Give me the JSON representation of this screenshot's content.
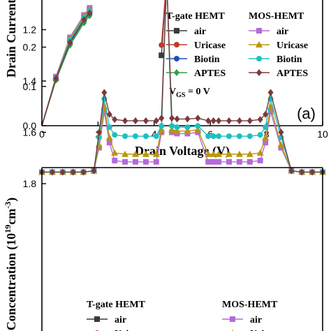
{
  "chart_data": [
    {
      "type": "line",
      "panel_label": "(a)",
      "xlabel": "Drain Voltage (V)",
      "ylabel": "Drain Current",
      "xlim": [
        0,
        10
      ],
      "ylim": [
        0.0,
        0.32
      ],
      "x_ticks": [
        "0",
        "2",
        "4",
        "6",
        "8",
        "10"
      ],
      "y_ticks": [
        "0.0",
        "0.1",
        "0.2"
      ],
      "annotation": "V_GS = 0 V",
      "legend": {
        "placement": "right",
        "groups": [
          {
            "title": "T-gate HEMT",
            "entries": [
              "air",
              "Uricase",
              "Biotin",
              "APTES"
            ]
          },
          {
            "title": "MOS-HEMT",
            "entries": [
              "air",
              "Uricase",
              "Biotin",
              "APTES"
            ]
          }
        ]
      },
      "series": [
        {
          "name": "air",
          "group": "T-gate HEMT",
          "color": "#3a3a3a",
          "marker": "square",
          "x": [
            0,
            0.5,
            1.0,
            1.5,
            1.7
          ],
          "y": [
            0,
            0.12,
            0.22,
            0.278,
            0.295
          ]
        },
        {
          "name": "Uricase",
          "group": "T-gate HEMT",
          "color": "#c0392b",
          "marker": "circle",
          "x": [
            0,
            0.5,
            1.0,
            1.5,
            1.7
          ],
          "y": [
            0,
            0.119,
            0.215,
            0.272,
            0.29
          ]
        },
        {
          "name": "Biotin",
          "group": "T-gate HEMT",
          "color": "#1f4fb4",
          "marker": "circle",
          "x": [
            0,
            0.5,
            1.0,
            1.5,
            1.7
          ],
          "y": [
            0,
            0.118,
            0.21,
            0.268,
            0.285
          ]
        },
        {
          "name": "APTES",
          "group": "T-gate HEMT",
          "color": "#2e9e4a",
          "marker": "diamond",
          "x": [
            0,
            0.5,
            1.0,
            1.5,
            1.7
          ],
          "y": [
            0,
            0.116,
            0.205,
            0.262,
            0.28
          ]
        },
        {
          "name": "air",
          "group": "MOS-HEMT",
          "color": "#b46ad9",
          "marker": "square",
          "x": [
            0,
            0.5,
            1.0,
            1.5,
            1.7
          ],
          "y": [
            0,
            0.125,
            0.225,
            0.282,
            0.3
          ]
        },
        {
          "name": "Uricase",
          "group": "MOS-HEMT",
          "color": "#b8960b",
          "marker": "triangle",
          "x": [
            0,
            0.5,
            1.0,
            1.5,
            1.7
          ],
          "y": [
            0,
            0.123,
            0.222,
            0.279,
            0.297
          ]
        },
        {
          "name": "Biotin",
          "group": "MOS-HEMT",
          "color": "#1cc0c0",
          "marker": "circle",
          "x": [
            0,
            0.5,
            1.0,
            1.5,
            1.7
          ],
          "y": [
            0,
            0.121,
            0.218,
            0.275,
            0.292
          ]
        },
        {
          "name": "APTES",
          "group": "MOS-HEMT",
          "color": "#7a3a3a",
          "marker": "diamond",
          "x": [
            0,
            0.5,
            1.0,
            1.5,
            1.7
          ],
          "y": [
            0,
            0.12,
            0.212,
            0.27,
            0.287
          ]
        }
      ]
    },
    {
      "type": "line",
      "ylabel": "Concentration (10^19cm^-3)",
      "ylim": [
        1.0,
        1.8
      ],
      "xlim": [
        0,
        27
      ],
      "y_ticks": [
        "1.2",
        "1.4",
        "1.6",
        "1.8"
      ],
      "legend": {
        "placement": "bottom",
        "groups": [
          {
            "title": "T-gate HEMT",
            "entries": [
              "air",
              "Uricase"
            ]
          },
          {
            "title": "MOS-HEMT",
            "entries": [
              "air",
              "Uricase"
            ]
          }
        ]
      },
      "x": [
        0,
        1,
        2,
        3,
        4,
        5,
        5.5,
        6,
        6.5,
        7,
        8,
        9,
        10,
        11,
        11.5,
        12,
        12.5,
        13,
        14,
        15,
        16,
        16.5,
        17,
        18,
        19,
        20,
        21,
        21.5,
        22,
        23,
        24,
        25,
        26,
        27
      ],
      "series": [
        {
          "name": "air",
          "group": "MOS-HEMT",
          "color": "#b46ad9",
          "marker": "square",
          "y": [
            1.755,
            1.755,
            1.755,
            1.755,
            1.755,
            1.75,
            1.66,
            1.52,
            1.64,
            1.71,
            1.715,
            1.715,
            1.715,
            1.715,
            1.6,
            1.0,
            1.6,
            1.605,
            1.605,
            1.6,
            1.715,
            1.715,
            1.715,
            1.715,
            1.715,
            1.715,
            1.71,
            1.64,
            1.52,
            1.66,
            1.75,
            1.755,
            1.755,
            1.755
          ]
        },
        {
          "name": "Uricase",
          "group": "MOS-HEMT",
          "color": "#b8960b",
          "marker": "triangle",
          "y": [
            1.755,
            1.755,
            1.755,
            1.755,
            1.755,
            1.75,
            1.65,
            1.5,
            1.62,
            1.68,
            1.685,
            1.685,
            1.685,
            1.685,
            1.59,
            1.0,
            1.59,
            1.595,
            1.595,
            1.59,
            1.685,
            1.685,
            1.685,
            1.685,
            1.685,
            1.685,
            1.68,
            1.62,
            1.5,
            1.65,
            1.75,
            1.755,
            1.755,
            1.755
          ]
        },
        {
          "name": "Biotin",
          "group": "MOS-HEMT",
          "color": "#1cc0c0",
          "marker": "circle",
          "y": [
            1.755,
            1.755,
            1.755,
            1.755,
            1.755,
            1.75,
            1.62,
            1.47,
            1.58,
            1.61,
            1.615,
            1.615,
            1.615,
            1.615,
            1.575,
            1.0,
            1.575,
            1.58,
            1.58,
            1.575,
            1.615,
            1.615,
            1.615,
            1.615,
            1.615,
            1.615,
            1.61,
            1.58,
            1.47,
            1.62,
            1.75,
            1.755,
            1.755,
            1.755
          ]
        },
        {
          "name": "APTES",
          "group": "MOS-HEMT",
          "color": "#7a3a3a",
          "marker": "diamond",
          "y": [
            1.755,
            1.755,
            1.755,
            1.755,
            1.755,
            1.75,
            1.6,
            1.445,
            1.53,
            1.55,
            1.555,
            1.555,
            1.555,
            1.555,
            1.545,
            1.0,
            1.545,
            1.548,
            1.548,
            1.545,
            1.555,
            1.555,
            1.555,
            1.555,
            1.555,
            1.555,
            1.55,
            1.53,
            1.445,
            1.6,
            1.75,
            1.755,
            1.755,
            1.755
          ]
        },
        {
          "name": "air",
          "group": "T-gate HEMT",
          "color": "#3a3a3a",
          "marker": "square",
          "y": [
            null,
            null,
            null,
            null,
            null,
            null,
            null,
            null,
            null,
            null,
            null,
            null,
            null,
            null,
            1.3,
            1.0,
            null,
            null,
            null,
            null,
            null,
            null,
            null,
            null,
            null,
            null,
            null,
            null,
            null,
            null,
            null,
            null,
            null,
            null
          ]
        },
        {
          "name": "Uricase",
          "group": "T-gate HEMT",
          "color": "#c0392b",
          "marker": "circle",
          "y": [
            null,
            null,
            null,
            null,
            null,
            null,
            null,
            null,
            null,
            null,
            null,
            null,
            null,
            null,
            1.26,
            1.0,
            null,
            null,
            null,
            null,
            null,
            null,
            null,
            null,
            null,
            null,
            null,
            null,
            null,
            null,
            null,
            null,
            null,
            null
          ]
        }
      ]
    }
  ]
}
